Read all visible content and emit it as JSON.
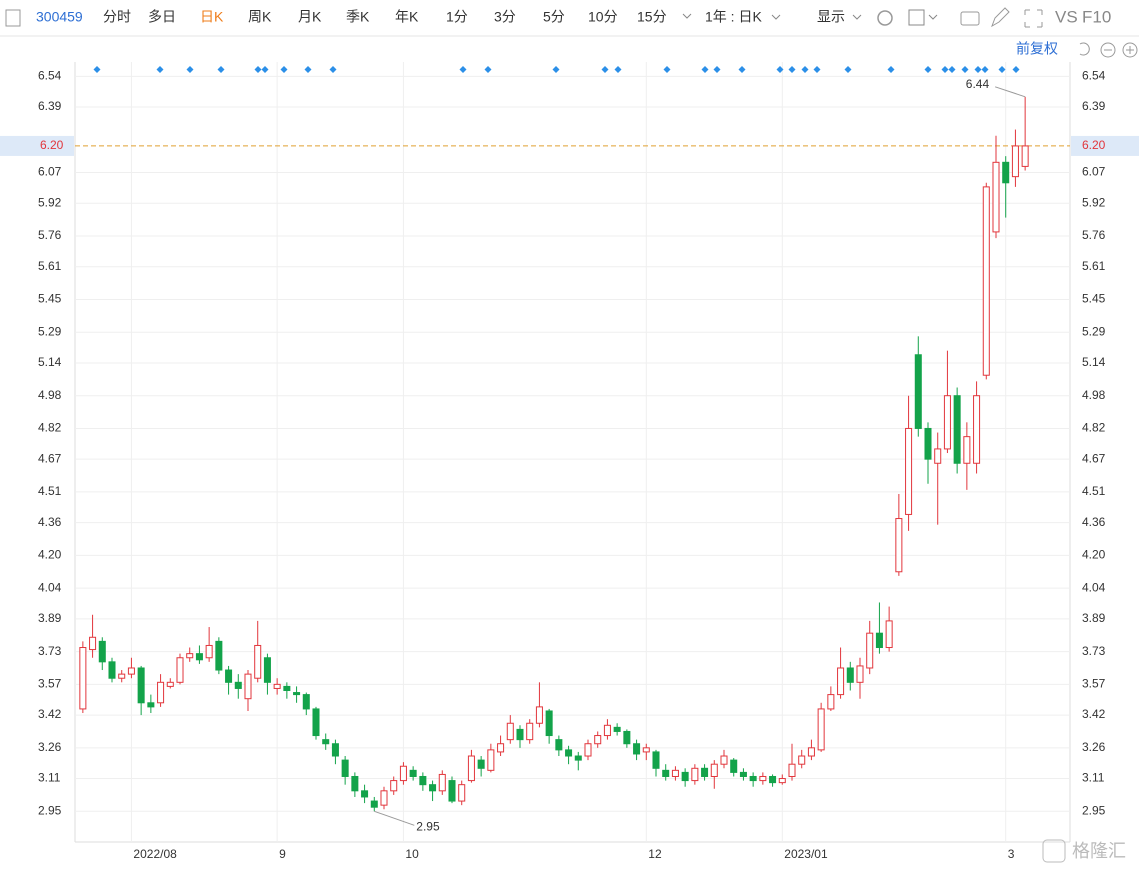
{
  "toolbar": {
    "code": "300459",
    "tabs": [
      "分时",
      "多日",
      "日K",
      "周K",
      "月K",
      "季K",
      "年K",
      "1分",
      "3分",
      "5分",
      "10分",
      "15分"
    ],
    "active_tab": 2,
    "period": "1年 : 日K",
    "display": "显示",
    "vs": "VS",
    "f10": "F10"
  },
  "adjust": "前复权",
  "watermark": "格隆汇",
  "chart_data": {
    "type": "candlestick",
    "categories": [
      null,
      null,
      null,
      null,
      null,
      "2022/08",
      null,
      null,
      null,
      null,
      null,
      null,
      null,
      null,
      null,
      null,
      null,
      null,
      null,
      null,
      "9",
      null,
      null,
      null,
      null,
      null,
      null,
      null,
      null,
      null,
      null,
      null,
      null,
      "10",
      null,
      null,
      null,
      null,
      null,
      null,
      null,
      null,
      null,
      null,
      null,
      null,
      null,
      null,
      null,
      null,
      null,
      null,
      null,
      null,
      null,
      null,
      null,
      null,
      "12",
      null,
      null,
      null,
      null,
      null,
      null,
      null,
      null,
      null,
      null,
      null,
      null,
      null,
      "2023/01",
      null,
      null,
      null,
      null,
      null,
      null,
      null,
      null,
      null,
      null,
      null,
      null,
      null,
      null,
      null,
      null,
      null,
      null,
      null,
      null,
      null,
      null,
      "3",
      null,
      null
    ],
    "open": [
      3.45,
      3.74,
      3.78,
      3.68,
      3.6,
      3.62,
      3.65,
      3.48,
      3.48,
      3.56,
      3.58,
      3.7,
      3.72,
      3.7,
      3.78,
      3.64,
      3.58,
      3.5,
      3.6,
      3.7,
      3.55,
      3.56,
      3.53,
      3.52,
      3.45,
      3.3,
      3.28,
      3.2,
      3.12,
      3.05,
      3.0,
      2.98,
      3.05,
      3.1,
      3.15,
      3.12,
      3.08,
      3.05,
      3.1,
      3.0,
      3.1,
      3.2,
      3.15,
      3.24,
      3.3,
      3.35,
      3.3,
      3.38,
      3.44,
      3.3,
      3.25,
      3.22,
      3.22,
      3.28,
      3.32,
      3.36,
      3.34,
      3.28,
      3.24,
      3.24,
      3.15,
      3.12,
      3.14,
      3.1,
      3.16,
      3.12,
      3.18,
      3.2,
      3.14,
      3.12,
      3.1,
      3.12,
      3.09,
      3.12,
      3.18,
      3.22,
      3.25,
      3.45,
      3.52,
      3.65,
      3.58,
      3.65,
      3.82,
      3.75,
      4.12,
      4.4,
      5.18,
      4.82,
      4.65,
      4.72,
      4.98,
      4.65,
      4.65,
      5.08,
      5.78,
      6.12,
      6.05,
      6.1
    ],
    "high": [
      3.78,
      3.91,
      3.8,
      3.7,
      3.64,
      3.7,
      3.66,
      3.52,
      3.62,
      3.6,
      3.72,
      3.75,
      3.76,
      3.85,
      3.8,
      3.66,
      3.62,
      3.64,
      3.88,
      3.72,
      3.6,
      3.58,
      3.56,
      3.53,
      3.46,
      3.33,
      3.3,
      3.22,
      3.14,
      3.08,
      3.02,
      3.07,
      3.12,
      3.19,
      3.17,
      3.14,
      3.1,
      3.15,
      3.12,
      3.1,
      3.25,
      3.22,
      3.28,
      3.32,
      3.42,
      3.37,
      3.4,
      3.58,
      3.45,
      3.32,
      3.27,
      3.24,
      3.3,
      3.34,
      3.4,
      3.38,
      3.35,
      3.3,
      3.28,
      3.25,
      3.18,
      3.17,
      3.16,
      3.18,
      3.18,
      3.2,
      3.25,
      3.21,
      3.16,
      3.14,
      3.14,
      3.13,
      3.13,
      3.28,
      3.25,
      3.3,
      3.48,
      3.56,
      3.75,
      3.68,
      3.7,
      3.88,
      3.97,
      3.95,
      4.5,
      4.98,
      5.27,
      4.85,
      4.8,
      5.2,
      5.02,
      4.85,
      5.05,
      6.02,
      6.25,
      6.15,
      6.28,
      6.44
    ],
    "low": [
      3.43,
      3.7,
      3.64,
      3.58,
      3.58,
      3.6,
      3.42,
      3.43,
      3.46,
      3.55,
      3.57,
      3.68,
      3.67,
      3.68,
      3.62,
      3.52,
      3.5,
      3.44,
      3.58,
      3.52,
      3.52,
      3.5,
      3.48,
      3.42,
      3.3,
      3.25,
      3.18,
      3.08,
      3.02,
      2.99,
      2.95,
      2.96,
      3.03,
      3.08,
      3.1,
      3.05,
      3.0,
      3.03,
      2.99,
      2.98,
      3.09,
      3.12,
      3.14,
      3.22,
      3.28,
      3.26,
      3.28,
      3.36,
      3.28,
      3.22,
      3.18,
      3.15,
      3.2,
      3.26,
      3.3,
      3.32,
      3.26,
      3.2,
      3.2,
      3.12,
      3.1,
      3.1,
      3.07,
      3.08,
      3.1,
      3.06,
      3.16,
      3.12,
      3.1,
      3.07,
      3.08,
      3.07,
      3.08,
      3.1,
      3.16,
      3.2,
      3.24,
      3.44,
      3.5,
      3.54,
      3.5,
      3.62,
      3.72,
      3.73,
      4.1,
      4.32,
      4.78,
      4.55,
      4.35,
      4.7,
      4.6,
      4.52,
      4.6,
      5.06,
      5.75,
      5.85,
      6.0,
      6.08
    ],
    "close": [
      3.75,
      3.8,
      3.68,
      3.6,
      3.62,
      3.65,
      3.48,
      3.46,
      3.58,
      3.58,
      3.7,
      3.72,
      3.69,
      3.76,
      3.64,
      3.58,
      3.55,
      3.62,
      3.76,
      3.58,
      3.57,
      3.54,
      3.52,
      3.45,
      3.32,
      3.28,
      3.22,
      3.12,
      3.05,
      3.02,
      2.97,
      3.05,
      3.1,
      3.17,
      3.12,
      3.08,
      3.05,
      3.13,
      3.0,
      3.08,
      3.22,
      3.16,
      3.25,
      3.28,
      3.38,
      3.3,
      3.38,
      3.46,
      3.32,
      3.25,
      3.22,
      3.2,
      3.28,
      3.32,
      3.37,
      3.34,
      3.28,
      3.23,
      3.26,
      3.16,
      3.12,
      3.15,
      3.1,
      3.16,
      3.12,
      3.18,
      3.22,
      3.14,
      3.12,
      3.1,
      3.12,
      3.09,
      3.11,
      3.18,
      3.22,
      3.26,
      3.45,
      3.52,
      3.65,
      3.58,
      3.66,
      3.82,
      3.75,
      3.88,
      4.38,
      4.82,
      4.82,
      4.67,
      4.72,
      4.98,
      4.65,
      4.78,
      4.98,
      6.0,
      6.12,
      6.02,
      6.2,
      6.2
    ],
    "up_color": "#e2363c",
    "down_color": "#13a34a",
    "ylim": [
      2.8,
      6.61
    ],
    "yticks": [
      2.95,
      3.11,
      3.26,
      3.42,
      3.57,
      3.73,
      3.89,
      4.04,
      {
        "value": 4.2,
        "label": "4.20"
      },
      4.36,
      4.51,
      4.67,
      4.82,
      4.98,
      5.14,
      5.29,
      5.45,
      5.61,
      5.76,
      5.92,
      6.07,
      6.39,
      6.54
    ],
    "current_price": {
      "value": 6.2,
      "label": "6.20"
    },
    "max_label": 6.44,
    "min_label": 2.95,
    "grid": true
  }
}
